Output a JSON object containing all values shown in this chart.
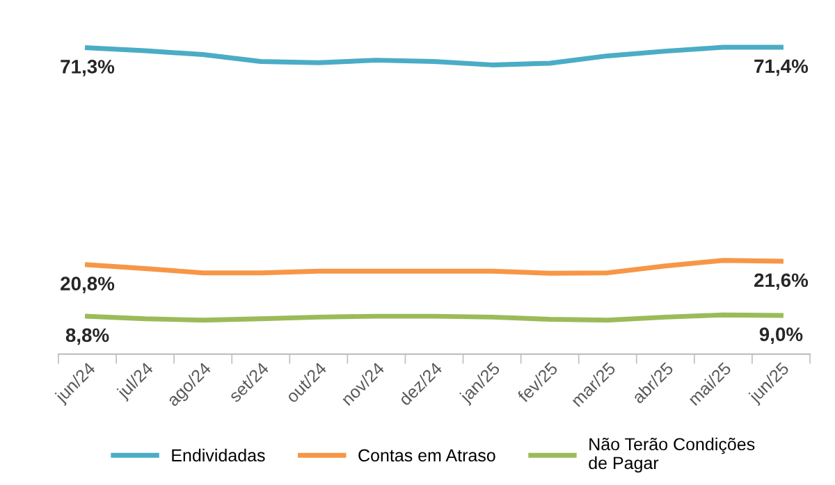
{
  "chart_data": {
    "type": "line",
    "categories": [
      "jun/24",
      "jul/24",
      "ago/24",
      "set/24",
      "out/24",
      "nov/24",
      "dez/24",
      "jan/25",
      "fev/25",
      "mar/25",
      "abr/25",
      "mai/25",
      "jun/25"
    ],
    "grid": false,
    "legend": "bottom",
    "marker": "none",
    "line_style": "solid",
    "series": [
      {
        "name": "Endividadas",
        "color": "#4bacc6",
        "values": [
          71.3,
          70.6,
          69.7,
          68.1,
          67.8,
          68.4,
          68.1,
          67.3,
          67.7,
          69.4,
          70.5,
          71.4,
          71.4
        ],
        "value_labels": [
          "71,3%",
          null,
          null,
          null,
          null,
          null,
          null,
          null,
          null,
          null,
          null,
          null,
          "71,4%"
        ]
      },
      {
        "name": "Contas em Atraso",
        "color": "#f79646",
        "values": [
          20.8,
          19.9,
          18.9,
          18.9,
          19.3,
          19.3,
          19.3,
          19.3,
          18.8,
          18.9,
          20.5,
          21.8,
          21.6
        ],
        "value_labels": [
          "20,8%",
          null,
          null,
          null,
          null,
          null,
          null,
          null,
          null,
          null,
          null,
          null,
          "21,6%"
        ]
      },
      {
        "name": "Não Terão Condições\nde Pagar",
        "color": "#9bbb59",
        "values": [
          8.8,
          8.2,
          7.9,
          8.2,
          8.6,
          8.8,
          8.8,
          8.6,
          8.1,
          7.9,
          8.6,
          9.1,
          9.0
        ],
        "value_labels": [
          "8,8%",
          null,
          null,
          null,
          null,
          null,
          null,
          null,
          null,
          null,
          null,
          null,
          "9,0%"
        ]
      }
    ]
  }
}
